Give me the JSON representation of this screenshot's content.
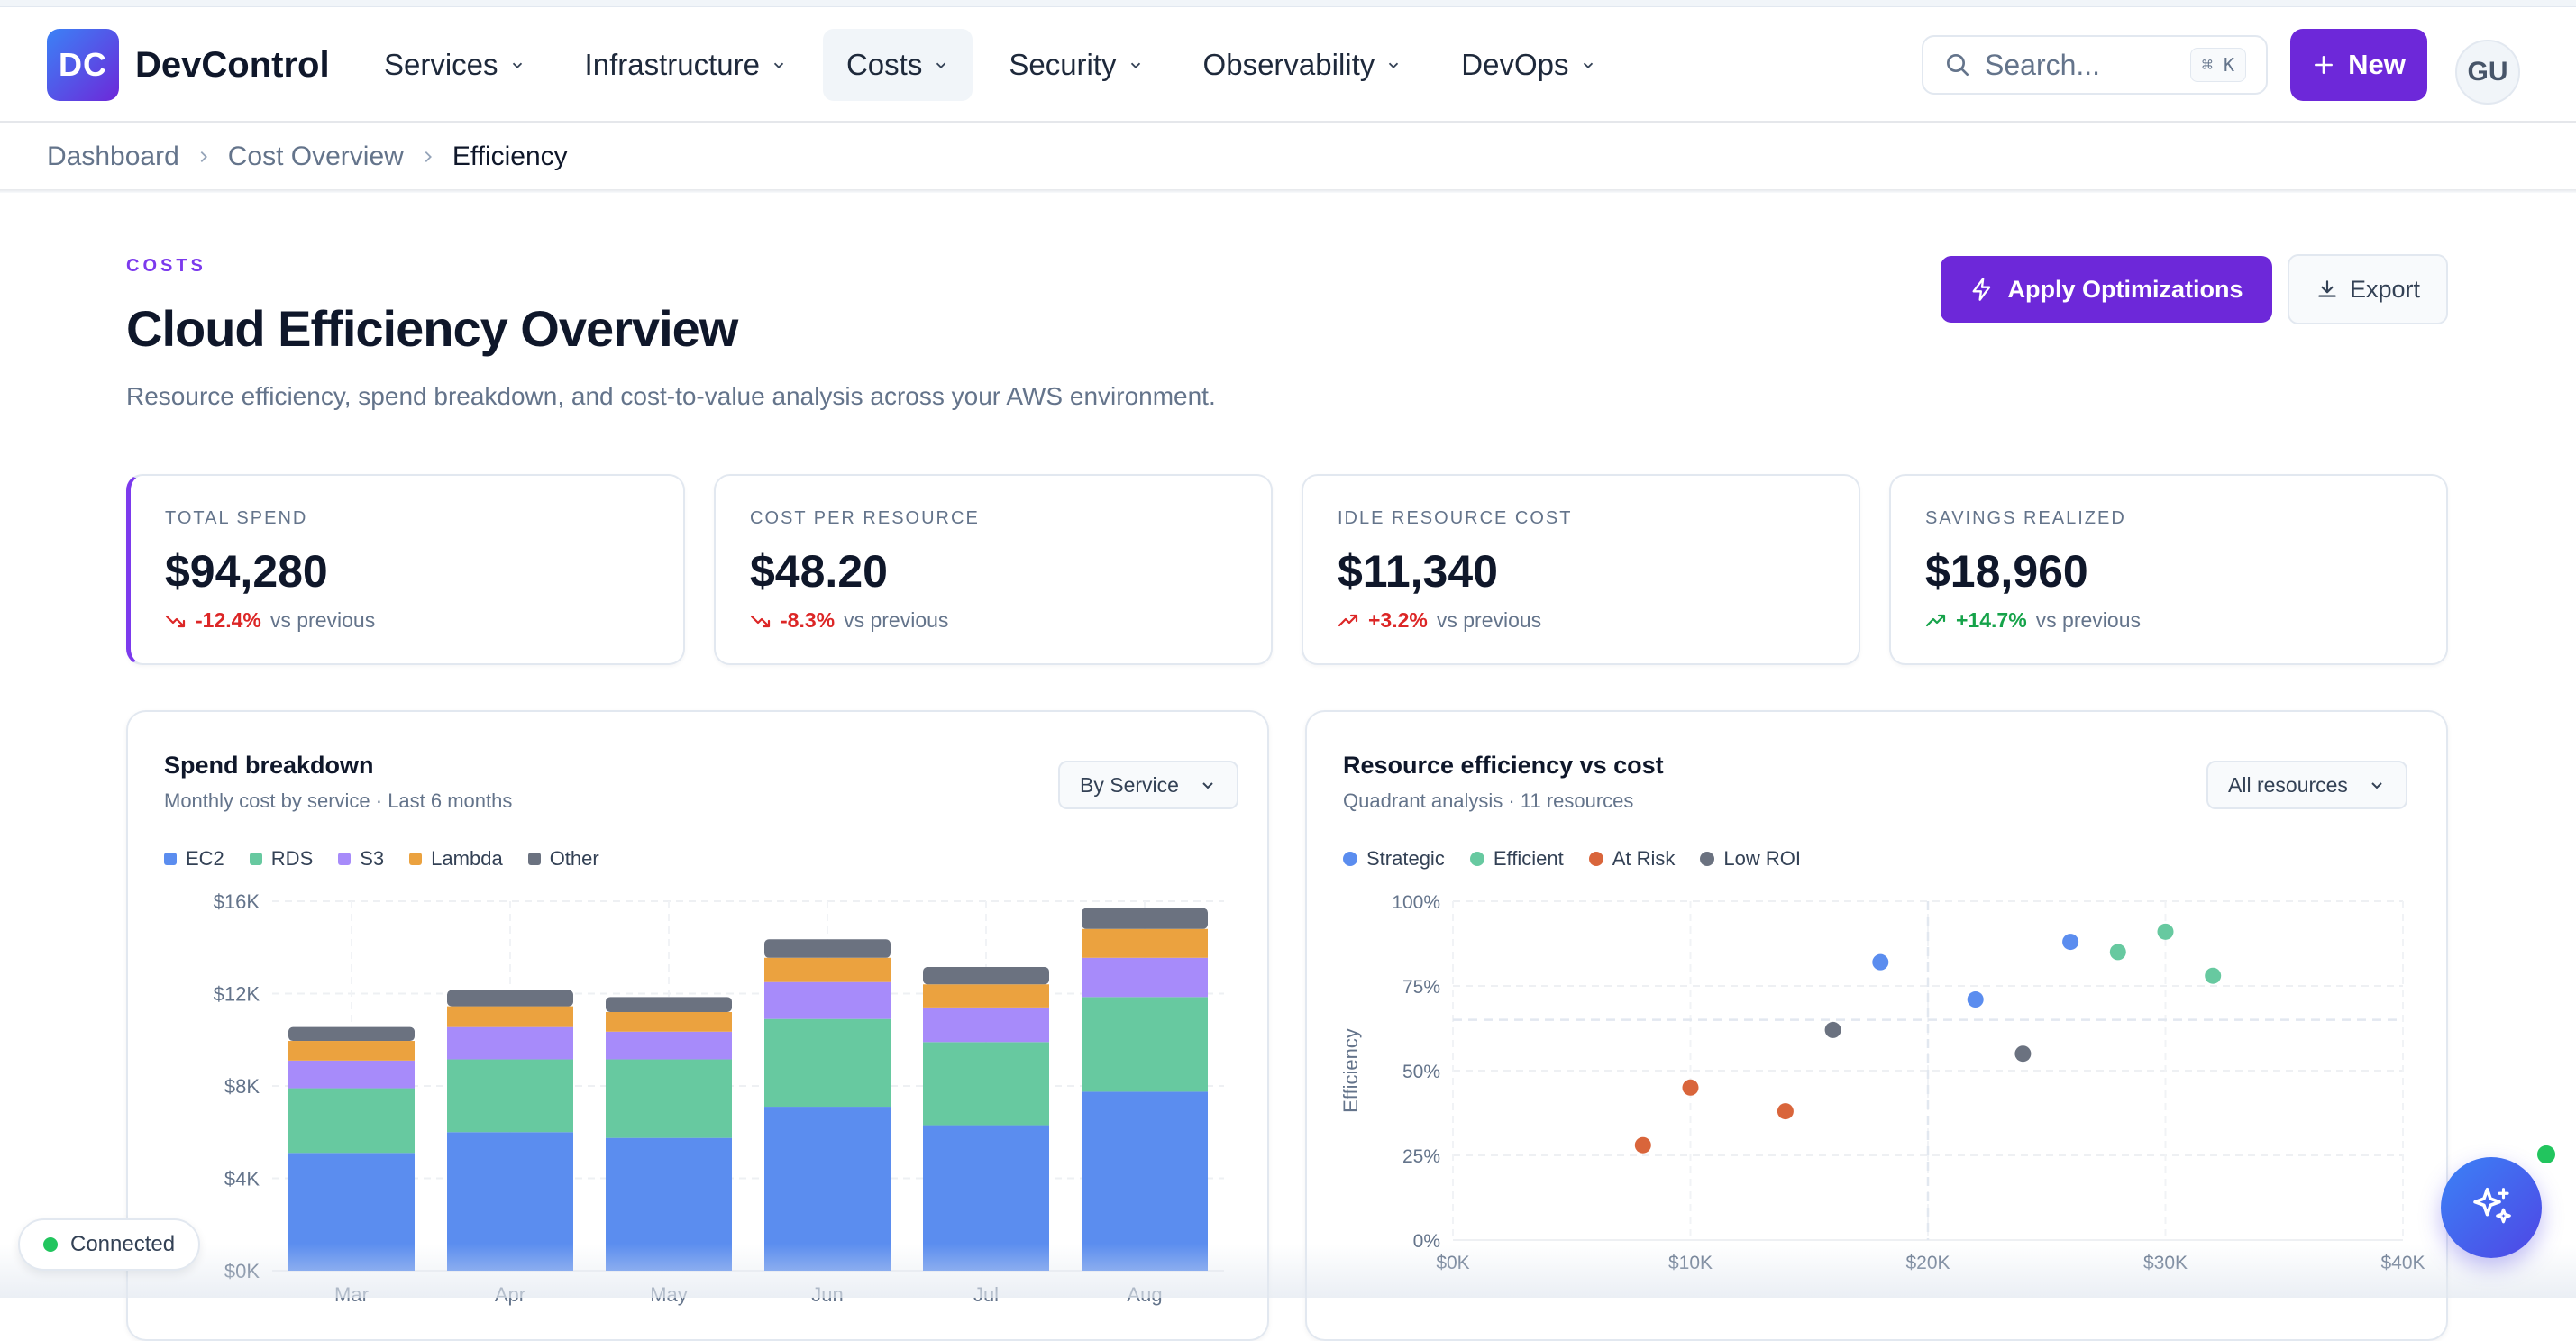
{
  "app": {
    "logo_text": "DC",
    "brand": "DevControl"
  },
  "nav": [
    {
      "label": "Services",
      "active": false
    },
    {
      "label": "Infrastructure",
      "active": false
    },
    {
      "label": "Costs",
      "active": true
    },
    {
      "label": "Security",
      "active": false
    },
    {
      "label": "Observability",
      "active": false
    },
    {
      "label": "DevOps",
      "active": false
    }
  ],
  "search": {
    "placeholder": "Search...",
    "shortcut": "⌘ K",
    "icon": "search-icon"
  },
  "new_button": {
    "label": "New"
  },
  "user": {
    "initials": "GU"
  },
  "breadcrumb": [
    "Dashboard",
    "Cost Overview",
    "Efficiency"
  ],
  "page": {
    "eyebrow": "COSTS",
    "title": "Cloud Efficiency Overview",
    "subtitle": "Resource efficiency, spend breakdown, and cost-to-value analysis across your AWS environment.",
    "apply_label": "Apply Optimizations",
    "export_label": "Export"
  },
  "kpis": [
    {
      "label": "TOTAL SPEND",
      "value": "$94,280",
      "delta": "-12.4%",
      "direction": "down",
      "compare": "vs previous"
    },
    {
      "label": "COST PER RESOURCE",
      "value": "$48.20",
      "delta": "-8.3%",
      "direction": "down",
      "compare": "vs previous"
    },
    {
      "label": "IDLE RESOURCE COST",
      "value": "$11,340",
      "delta": "+3.2%",
      "direction": "up-bad",
      "compare": "vs previous"
    },
    {
      "label": "SAVINGS REALIZED",
      "value": "$18,960",
      "delta": "+14.7%",
      "direction": "up-good",
      "compare": "vs previous"
    }
  ],
  "spend_card": {
    "title": "Spend breakdown",
    "subtitle": "Monthly cost by service · Last 6 months",
    "select": "By Service"
  },
  "eff_card": {
    "title": "Resource efficiency vs cost",
    "subtitle": "Quadrant analysis · 11 resources",
    "select": "All resources"
  },
  "status": {
    "label": "Connected"
  },
  "colors": {
    "accent": "#6d28d9",
    "ec2": "#5b8def",
    "rds": "#67c9a0",
    "s3": "#a78bfa",
    "lambda": "#eba23f",
    "other": "#6b7280",
    "strategic": "#5b8def",
    "efficient": "#67c9a0",
    "atrisk": "#d9653b",
    "lowroi": "#6b7280"
  },
  "chart_data": [
    {
      "type": "bar",
      "stacked": true,
      "title": "Spend breakdown",
      "categories": [
        "Mar",
        "Apr",
        "May",
        "Jun",
        "Jul",
        "Aug"
      ],
      "series": [
        {
          "name": "EC2",
          "color": "#5b8def",
          "values": [
            5100,
            6000,
            5750,
            7100,
            6300,
            7750
          ]
        },
        {
          "name": "RDS",
          "color": "#67c9a0",
          "values": [
            2800,
            3150,
            3400,
            3800,
            3600,
            4100
          ]
        },
        {
          "name": "S3",
          "color": "#a78bfa",
          "values": [
            1200,
            1400,
            1200,
            1600,
            1500,
            1700
          ]
        },
        {
          "name": "Lambda",
          "color": "#eba23f",
          "values": [
            850,
            900,
            850,
            1050,
            1000,
            1250
          ]
        },
        {
          "name": "Other",
          "color": "#6b7280",
          "values": [
            600,
            700,
            650,
            800,
            750,
            900
          ]
        }
      ],
      "yticks": [
        "$0K",
        "$4K",
        "$8K",
        "$12K",
        "$16K"
      ],
      "ylim": [
        0,
        16000
      ],
      "grid": true,
      "legend": "top-left"
    },
    {
      "type": "scatter",
      "title": "Resource efficiency vs cost",
      "ylabel": "Efficiency",
      "xticks": [
        "$0K",
        "$10K",
        "$20K",
        "$30K",
        "$40K"
      ],
      "yticks": [
        "0%",
        "25%",
        "50%",
        "75%",
        "100%"
      ],
      "xlim": [
        0,
        40000
      ],
      "ylim": [
        0,
        100
      ],
      "grid": true,
      "legend": "top-left",
      "series": [
        {
          "name": "Strategic",
          "color": "#5b8def",
          "points": [
            [
              18000,
              82
            ],
            [
              22000,
              71
            ],
            [
              26000,
              88
            ]
          ]
        },
        {
          "name": "Efficient",
          "color": "#67c9a0",
          "points": [
            [
              28000,
              85
            ],
            [
              30000,
              91
            ],
            [
              32000,
              78
            ]
          ]
        },
        {
          "name": "At Risk",
          "color": "#d9653b",
          "points": [
            [
              8000,
              28
            ],
            [
              10000,
              45
            ],
            [
              14000,
              38
            ]
          ]
        },
        {
          "name": "Low ROI",
          "color": "#6b7280",
          "points": [
            [
              16000,
              62
            ],
            [
              24000,
              55
            ]
          ]
        }
      ]
    }
  ]
}
